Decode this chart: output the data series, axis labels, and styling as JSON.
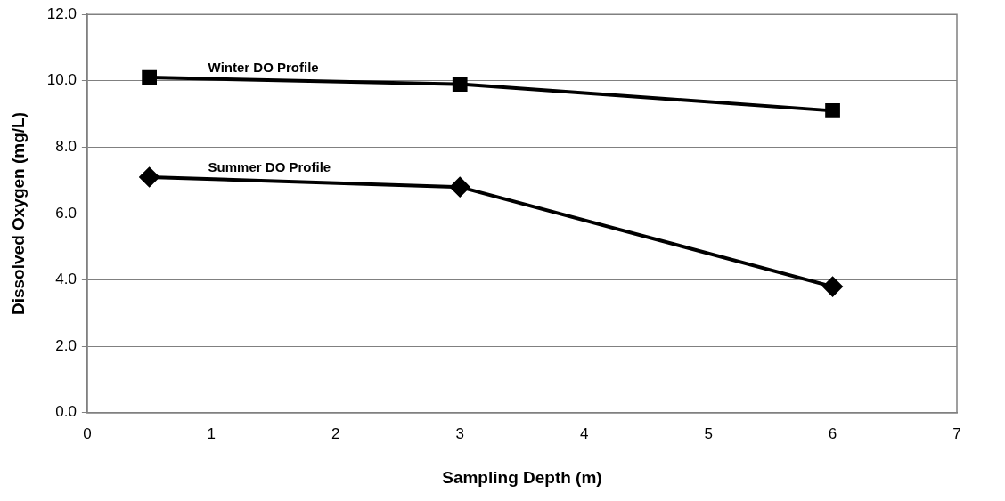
{
  "chart_data": {
    "type": "line",
    "xlabel": "Sampling Depth (m)",
    "ylabel": "Dissolved Oxygen (mg/L)",
    "x": [
      0.5,
      3,
      6
    ],
    "series": [
      {
        "name": "Winter DO Profile",
        "color": "#000000",
        "marker": "square",
        "values": [
          10.1,
          9.9,
          9.1
        ]
      },
      {
        "name": "Summer DO Profile",
        "color": "#000000",
        "marker": "diamond",
        "values": [
          7.1,
          6.8,
          3.8
        ]
      }
    ],
    "xlim": [
      0,
      7
    ],
    "xticks": [
      0,
      1,
      2,
      3,
      4,
      5,
      6,
      7
    ],
    "ylim": [
      0,
      12
    ],
    "yticks": [
      {
        "value": 0,
        "label": "0.0"
      },
      {
        "value": 2,
        "label": "2.0"
      },
      {
        "value": 4,
        "label": "4.0"
      },
      {
        "value": 6,
        "label": "6.0"
      },
      {
        "value": 8,
        "label": "8.0"
      },
      {
        "value": 10,
        "label": "10.0"
      },
      {
        "value": 12,
        "label": "12.0"
      }
    ],
    "grid": "y",
    "legend": false,
    "line_style": "solid"
  }
}
